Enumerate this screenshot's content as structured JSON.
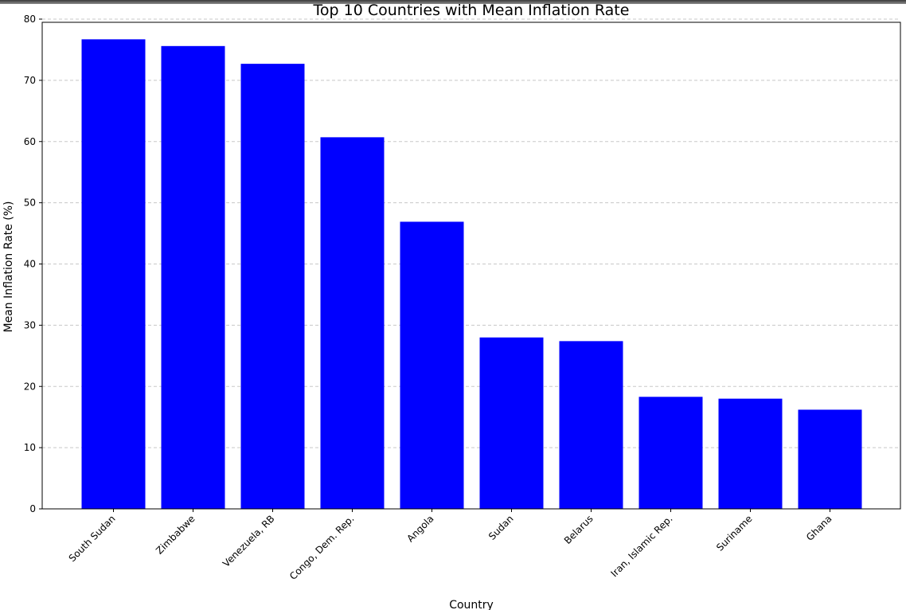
{
  "chart_data": {
    "type": "bar",
    "title": "Top 10 Countries with Mean Inflation Rate",
    "xlabel": "Country",
    "ylabel": "Mean Inflation Rate (%)",
    "categories": [
      "South Sudan",
      "Zimbabwe",
      "Venezuela, RB",
      "Congo, Dem. Rep.",
      "Angola",
      "Sudan",
      "Belarus",
      "Iran, Islamic Rep.",
      "Suriname",
      "Ghana"
    ],
    "values": [
      76.7,
      75.6,
      72.7,
      60.7,
      46.9,
      28.0,
      27.4,
      18.3,
      18.0,
      16.2
    ],
    "ylim": [
      0,
      80
    ],
    "yticks": [
      0,
      10,
      20,
      30,
      40,
      50,
      60,
      70,
      80
    ],
    "grid": "y, dashed",
    "bar_color": "#0000ff"
  }
}
